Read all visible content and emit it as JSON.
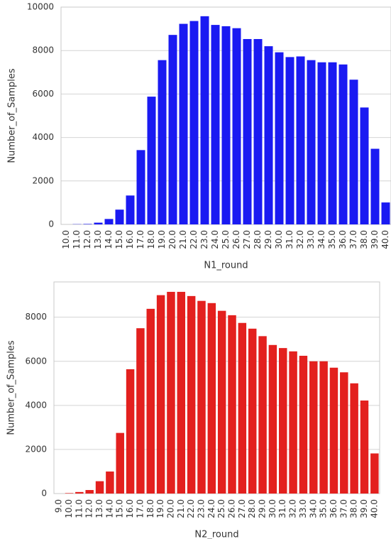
{
  "chart_data": [
    {
      "type": "bar",
      "xlabel": "N1_round",
      "ylabel": "Number_of_Samples",
      "color": "#1a1af2",
      "grid": true,
      "categories": [
        "10.0",
        "11.0",
        "12.0",
        "13.0",
        "14.0",
        "15.0",
        "16.0",
        "17.0",
        "18.0",
        "19.0",
        "20.0",
        "21.0",
        "22.0",
        "23.0",
        "24.0",
        "25.0",
        "26.0",
        "27.0",
        "28.0",
        "29.0",
        "30.0",
        "31.0",
        "32.0",
        "33.0",
        "34.0",
        "35.0",
        "36.0",
        "37.0",
        "38.0",
        "39.0",
        "40.0"
      ],
      "values": [
        0,
        10,
        20,
        80,
        250,
        680,
        1330,
        3420,
        5880,
        7560,
        8720,
        9230,
        9360,
        9580,
        9180,
        9120,
        9030,
        8530,
        8530,
        8200,
        7920,
        7700,
        7730,
        7560,
        7460,
        7460,
        7360,
        6660,
        5380,
        3480,
        1010
      ],
      "ylim": [
        0,
        10000
      ],
      "yticks": [
        0,
        2000,
        4000,
        6000,
        8000,
        10000
      ]
    },
    {
      "type": "bar",
      "xlabel": "N2_round",
      "ylabel": "Number_of_Samples",
      "color": "#e3201e",
      "grid": true,
      "categories": [
        "9.0",
        "10.0",
        "11.0",
        "12.0",
        "13.0",
        "14.0",
        "15.0",
        "16.0",
        "17.0",
        "18.0",
        "19.0",
        "20.0",
        "21.0",
        "22.0",
        "23.0",
        "24.0",
        "25.0",
        "26.0",
        "27.0",
        "28.0",
        "29.0",
        "30.0",
        "31.0",
        "32.0",
        "33.0",
        "34.0",
        "35.0",
        "36.0",
        "37.0",
        "38.0",
        "39.0",
        "40.0"
      ],
      "values": [
        0,
        20,
        70,
        160,
        560,
        1000,
        2750,
        5640,
        7500,
        8380,
        9000,
        9150,
        9150,
        8960,
        8740,
        8640,
        8290,
        8090,
        7740,
        7480,
        7140,
        6740,
        6600,
        6450,
        6250,
        6000,
        6000,
        5710,
        5500,
        5000,
        4220,
        1820
      ],
      "ylim": [
        0,
        9600
      ],
      "yticks": [
        0,
        2000,
        4000,
        6000,
        8000
      ]
    }
  ]
}
